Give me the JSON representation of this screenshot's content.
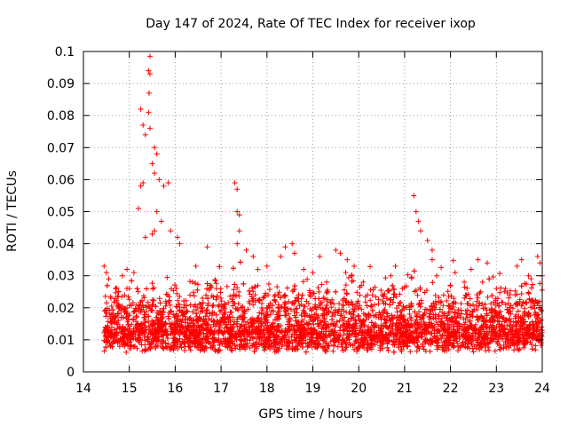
{
  "chart_data": {
    "type": "scatter",
    "title": "Day 147 of 2024, Rate Of TEC Index for receiver ixop",
    "xlabel": "GPS time / hours",
    "ylabel": "ROTI / TECUs",
    "xlim": [
      14,
      24
    ],
    "ylim": [
      0,
      0.1
    ],
    "x_ticks": [
      "14",
      "15",
      "16",
      "17",
      "18",
      "19",
      "20",
      "21",
      "22",
      "23",
      "24"
    ],
    "y_ticks": [
      "0",
      "0.01",
      "0.02",
      "0.03",
      "0.04",
      "0.05",
      "0.06",
      "0.07",
      "0.08",
      "0.09",
      "0.1"
    ],
    "grid": true,
    "marker": "+",
    "color": "#ff0000",
    "series": [
      {
        "name": "ROTI",
        "description": "dense band of points between ~0.005 and ~0.03 TECU across 14.5–24 h",
        "points": [
          [
            15.25,
            0.082
          ],
          [
            15.3,
            0.077
          ],
          [
            15.35,
            0.074
          ],
          [
            15.45,
            0.076
          ],
          [
            15.45,
            0.0985
          ],
          [
            15.42,
            0.094
          ],
          [
            15.45,
            0.093
          ],
          [
            15.43,
            0.087
          ],
          [
            15.42,
            0.081
          ],
          [
            15.55,
            0.07
          ],
          [
            15.6,
            0.068
          ],
          [
            15.5,
            0.065
          ],
          [
            15.55,
            0.062
          ],
          [
            15.65,
            0.06
          ],
          [
            15.75,
            0.058
          ],
          [
            15.85,
            0.059
          ],
          [
            15.3,
            0.059
          ],
          [
            15.25,
            0.058
          ],
          [
            15.2,
            0.051
          ],
          [
            15.6,
            0.05
          ],
          [
            15.7,
            0.047
          ],
          [
            15.9,
            0.044
          ],
          [
            16.05,
            0.042
          ],
          [
            16.1,
            0.04
          ],
          [
            15.55,
            0.044
          ],
          [
            15.5,
            0.043
          ],
          [
            15.35,
            0.042
          ],
          [
            16.45,
            0.033
          ],
          [
            16.7,
            0.039
          ],
          [
            16.9,
            0.026
          ],
          [
            17.3,
            0.059
          ],
          [
            17.35,
            0.057
          ],
          [
            17.35,
            0.05
          ],
          [
            17.4,
            0.049
          ],
          [
            17.4,
            0.044
          ],
          [
            17.35,
            0.04
          ],
          [
            17.55,
            0.038
          ],
          [
            17.7,
            0.036
          ],
          [
            17.8,
            0.032
          ],
          [
            18.0,
            0.033
          ],
          [
            18.3,
            0.036
          ],
          [
            18.4,
            0.039
          ],
          [
            18.55,
            0.04
          ],
          [
            18.6,
            0.037
          ],
          [
            18.8,
            0.032
          ],
          [
            19.0,
            0.031
          ],
          [
            19.15,
            0.036
          ],
          [
            19.3,
            0.028
          ],
          [
            19.5,
            0.038
          ],
          [
            19.6,
            0.037
          ],
          [
            19.75,
            0.035
          ],
          [
            19.9,
            0.033
          ],
          [
            20.1,
            0.028
          ],
          [
            20.3,
            0.024
          ],
          [
            20.7,
            0.03
          ],
          [
            20.8,
            0.033
          ],
          [
            20.95,
            0.026
          ],
          [
            21.2,
            0.055
          ],
          [
            21.25,
            0.05
          ],
          [
            21.3,
            0.047
          ],
          [
            21.35,
            0.044
          ],
          [
            21.5,
            0.041
          ],
          [
            21.6,
            0.038
          ],
          [
            21.6,
            0.035
          ],
          [
            21.7,
            0.03
          ],
          [
            21.85,
            0.024
          ],
          [
            22.1,
            0.031
          ],
          [
            22.3,
            0.028
          ],
          [
            22.45,
            0.032
          ],
          [
            22.6,
            0.035
          ],
          [
            22.7,
            0.028
          ],
          [
            22.8,
            0.034
          ],
          [
            23.0,
            0.026
          ],
          [
            23.2,
            0.026
          ],
          [
            23.45,
            0.033
          ],
          [
            23.55,
            0.035
          ],
          [
            23.7,
            0.03
          ],
          [
            23.9,
            0.036
          ],
          [
            23.95,
            0.034
          ],
          [
            24.0,
            0.03
          ],
          [
            14.45,
            0.033
          ],
          [
            14.5,
            0.031
          ],
          [
            14.55,
            0.029
          ],
          [
            14.6,
            0.023
          ],
          [
            14.7,
            0.026
          ],
          [
            14.85,
            0.03
          ],
          [
            14.95,
            0.032
          ],
          [
            15.0,
            0.026
          ],
          [
            15.1,
            0.031
          ]
        ]
      }
    ]
  }
}
